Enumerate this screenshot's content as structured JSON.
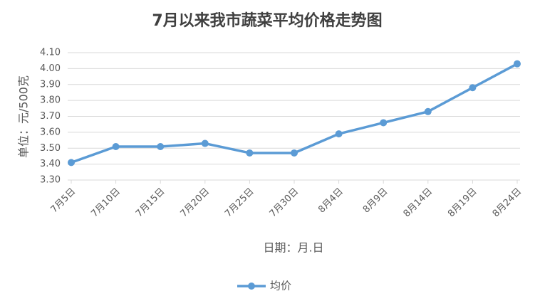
{
  "chart_data": {
    "type": "line",
    "title": "7月以来我市蔬菜平均价格走势图",
    "y_label": "单位：元/500克",
    "x_label": "日期：月.日",
    "categories": [
      "7月5日",
      "7月10日",
      "7月15日",
      "7月20日",
      "7月25日",
      "7月30日",
      "8月4日",
      "8月9日",
      "8月14日",
      "8月19日",
      "8月24日"
    ],
    "series": [
      {
        "name": "均价",
        "color": "#5b9bd5",
        "values": [
          3.41,
          3.51,
          3.51,
          3.53,
          3.47,
          3.47,
          3.59,
          3.66,
          3.73,
          3.88,
          4.03
        ]
      }
    ],
    "ylim": [
      3.3,
      4.1
    ],
    "yticks": [
      {
        "value": 3.3,
        "label": "3.30"
      },
      {
        "value": 3.4,
        "label": "3.40"
      },
      {
        "value": 3.5,
        "label": "3.50"
      },
      {
        "value": 3.6,
        "label": "3.60"
      },
      {
        "value": 3.7,
        "label": "3.70"
      },
      {
        "value": 3.8,
        "label": "3.80"
      },
      {
        "value": 3.9,
        "label": "3.90"
      },
      {
        "value": 4.0,
        "label": "4.00"
      },
      {
        "value": 4.1,
        "label": "4.10"
      }
    ],
    "grid": true,
    "legend": "bottom"
  }
}
